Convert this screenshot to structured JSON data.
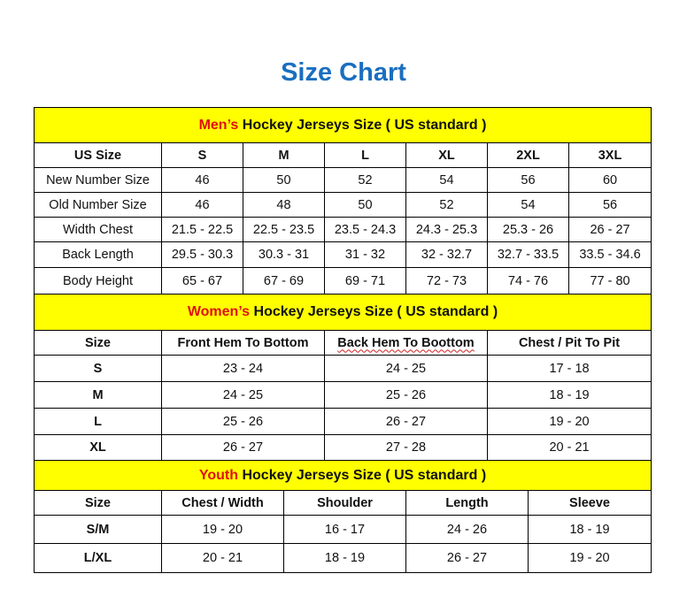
{
  "title": "Size Chart",
  "colors": {
    "title": "#1a6fc0",
    "section_bg": "#ffff00",
    "highlight": "#e01010"
  },
  "mens": {
    "title_highlight": "Men’s",
    "title_rest": " Hockey Jerseys Size ( US standard )",
    "headers": [
      "US Size",
      "S",
      "M",
      "L",
      "XL",
      "2XL",
      "3XL"
    ],
    "rows": [
      [
        "New Number Size",
        "46",
        "50",
        "52",
        "54",
        "56",
        "60"
      ],
      [
        "Old Number Size",
        "46",
        "48",
        "50",
        "52",
        "54",
        "56"
      ],
      [
        "Width Chest",
        "21.5 - 22.5",
        "22.5 - 23.5",
        "23.5 - 24.3",
        "24.3 - 25.3",
        "25.3 - 26",
        "26 - 27"
      ],
      [
        "Back Length",
        "29.5 - 30.3",
        "30.3 - 31",
        "31 - 32",
        "32 - 32.7",
        "32.7 - 33.5",
        "33.5 - 34.6"
      ],
      [
        "Body Height",
        "65 - 67",
        "67 - 69",
        "69 - 71",
        "72 - 73",
        "74 - 76",
        "77 - 80"
      ]
    ]
  },
  "womens": {
    "title_highlight": "Women’s",
    "title_rest": " Hockey Jerseys Size ( US standard )",
    "headers": [
      "Size",
      "Front Hem To Bottom",
      "Back Hem To Boottom",
      "Chest / Pit To Pit"
    ],
    "rows": [
      [
        "S",
        "23 - 24",
        "24 - 25",
        "17 - 18"
      ],
      [
        "M",
        "24 - 25",
        "25 - 26",
        "18 - 19"
      ],
      [
        "L",
        "25 - 26",
        "26 - 27",
        "19 - 20"
      ],
      [
        "XL",
        "26 - 27",
        "27 - 28",
        "20 - 21"
      ]
    ]
  },
  "youth": {
    "title_highlight": "Youth",
    "title_rest": " Hockey Jerseys Size ( US standard )",
    "headers": [
      "Size",
      "Chest / Width",
      "Shoulder",
      "Length",
      "Sleeve"
    ],
    "rows": [
      [
        "S/M",
        "19 - 20",
        "16 - 17",
        "24 - 26",
        "18 - 19"
      ],
      [
        "L/XL",
        "20 - 21",
        "18 - 19",
        "26 - 27",
        "19 - 20"
      ]
    ]
  }
}
